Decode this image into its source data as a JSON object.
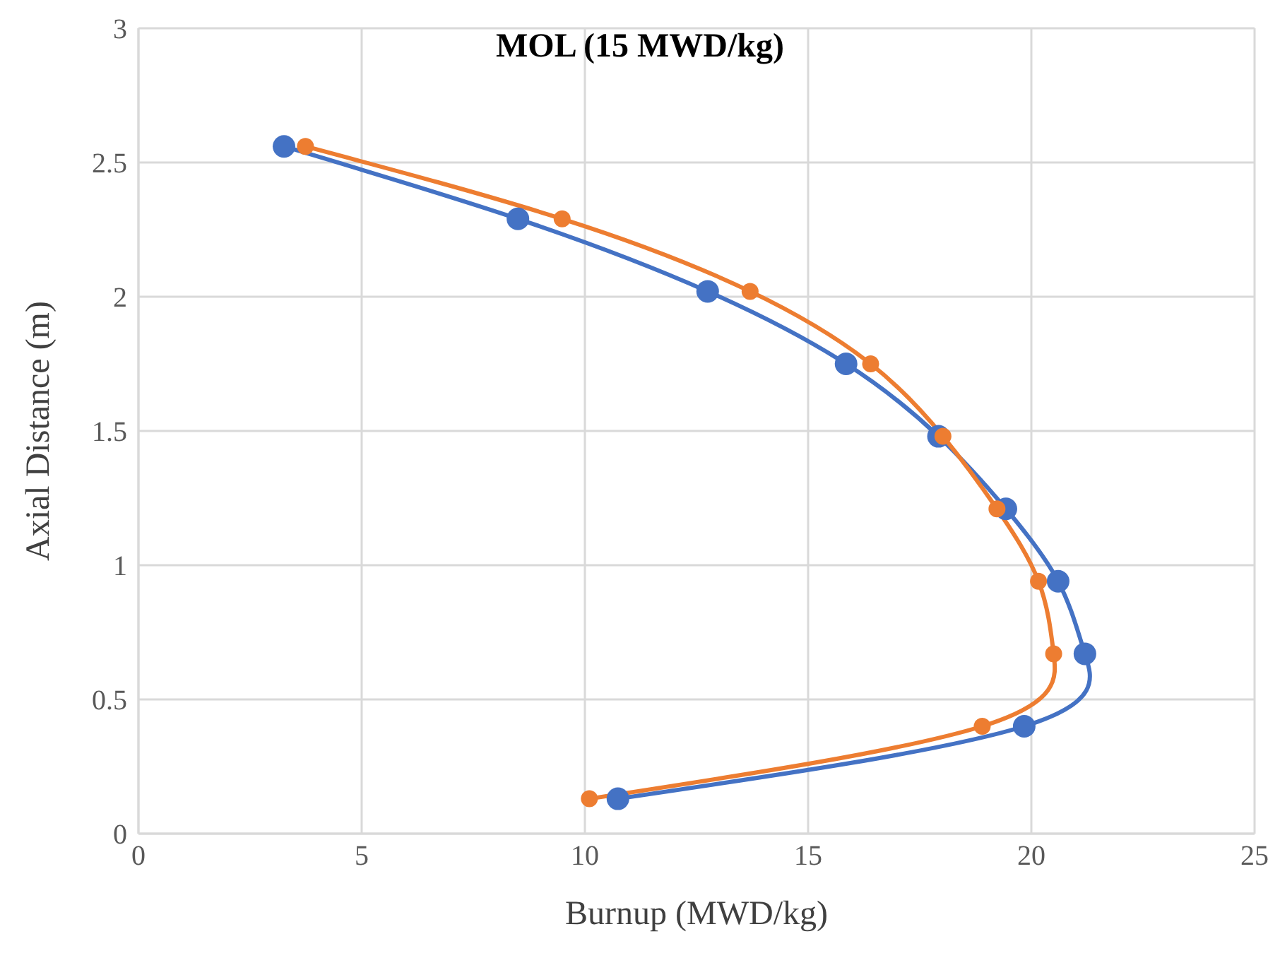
{
  "chart_data": {
    "type": "line",
    "title": "MOL (15 MWD/kg)",
    "xlabel": "Burnup (MWD/kg)",
    "ylabel": "Axial Distance (m)",
    "xlim": [
      0,
      25
    ],
    "xticks": [
      0,
      5,
      10,
      15,
      20,
      25
    ],
    "ylim": [
      0,
      3
    ],
    "yticks": [
      0,
      0.5,
      1,
      1.5,
      2,
      2.5,
      3
    ],
    "grid": true,
    "marker": "circle",
    "line_style": "solid",
    "series": [
      {
        "color": "#4472c4",
        "x": [
          3.26,
          8.5,
          12.75,
          15.85,
          17.92,
          19.43,
          20.6,
          21.2,
          19.84,
          10.74
        ],
        "values": [
          2.56,
          2.29,
          2.02,
          1.75,
          1.48,
          1.21,
          0.94,
          0.67,
          0.4,
          0.13
        ]
      },
      {
        "color": "#ed7d31",
        "x": [
          3.74,
          9.49,
          13.7,
          16.4,
          18.02,
          19.23,
          20.16,
          20.5,
          18.9,
          10.1
        ],
        "values": [
          2.56,
          2.29,
          2.02,
          1.75,
          1.48,
          1.21,
          0.94,
          0.67,
          0.4,
          0.13
        ]
      }
    ]
  }
}
